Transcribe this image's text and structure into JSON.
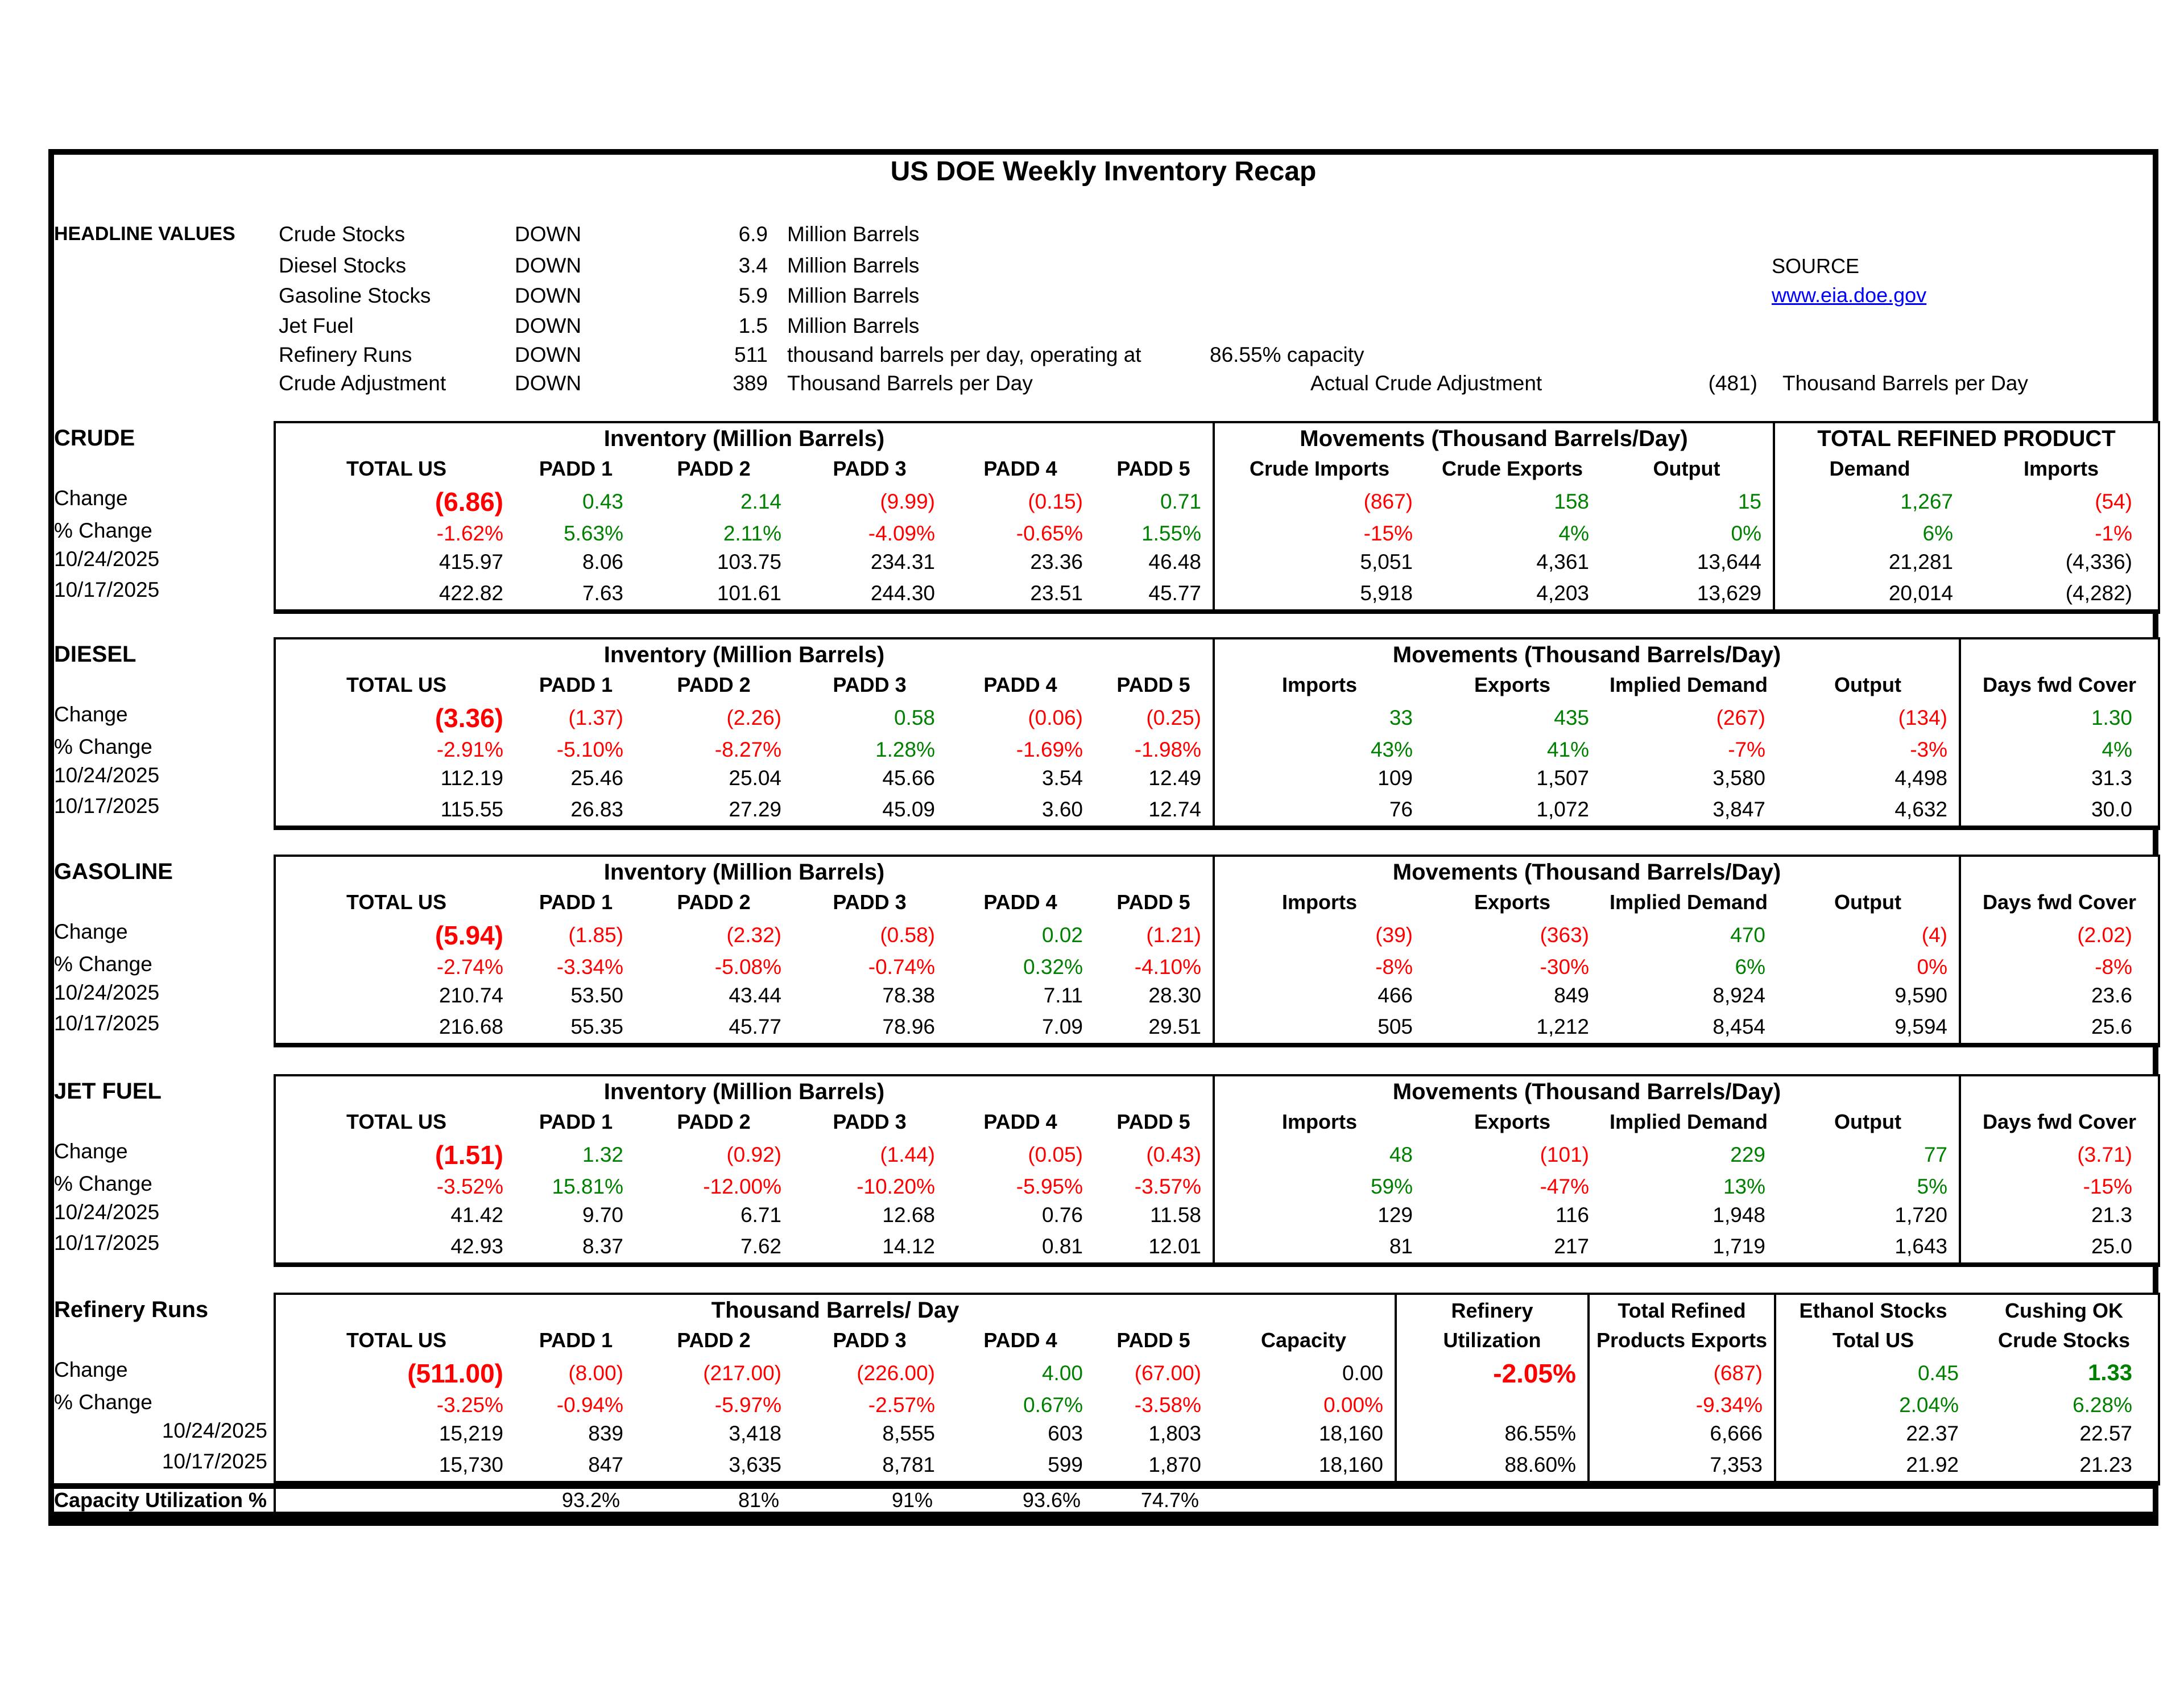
{
  "title": "US DOE Weekly Inventory Recap",
  "colors": {
    "negative": "#ff0000",
    "positive": "#008000",
    "link": "#0000ff",
    "border": "#000000"
  },
  "headline": {
    "label": "HEADLINE VALUES",
    "rows": [
      {
        "item": "Crude Stocks",
        "dir": "DOWN",
        "value": "6.9",
        "unit": "Million Barrels"
      },
      {
        "item": "Diesel Stocks",
        "dir": "DOWN",
        "value": "3.4",
        "unit": "Million Barrels"
      },
      {
        "item": "Gasoline Stocks",
        "dir": "DOWN",
        "value": "5.9",
        "unit": "Million Barrels"
      },
      {
        "item": "Jet Fuel",
        "dir": "DOWN",
        "value": "1.5",
        "unit": "Million Barrels"
      },
      {
        "item": "Refinery Runs",
        "dir": "DOWN",
        "value": "511",
        "unit": "thousand barrels per day, operating at",
        "capacity": "86.55% capacity"
      },
      {
        "item": "Crude Adjustment",
        "dir": "DOWN",
        "value": "389",
        "unit": "Thousand Barrels per Day",
        "actual_label": "Actual Crude Adjustment",
        "actual_value": "(481)",
        "actual_unit": "Thousand Barrels per Day"
      }
    ],
    "source_label": "SOURCE",
    "source_link": "www.eia.doe.gov"
  },
  "row_labels": [
    "Change",
    "% Change",
    "10/24/2025",
    "10/17/2025"
  ],
  "sections": {
    "crude": {
      "name": "CRUDE",
      "groups": [
        {
          "label": "Inventory (Million Barrels)",
          "span": [
            0,
            6
          ]
        },
        {
          "label": "Movements (Thousand Barrels/Day)",
          "span": [
            6,
            9
          ]
        },
        {
          "label": "TOTAL REFINED PRODUCT",
          "span": [
            9,
            11
          ]
        }
      ],
      "columns": [
        "TOTAL US",
        "PADD 1",
        "PADD 2",
        "PADD 3",
        "PADD 4",
        "PADD 5",
        "Crude Imports",
        "Crude Exports",
        "Output",
        "Demand",
        "Imports"
      ],
      "rows": [
        [
          [
            "(6.86)",
            "r",
            "big"
          ],
          [
            "0.43",
            "g"
          ],
          [
            "2.14",
            "g"
          ],
          [
            "(9.99)",
            "r"
          ],
          [
            "(0.15)",
            "r"
          ],
          [
            "0.71",
            "g"
          ],
          [
            "(867)",
            "r"
          ],
          [
            "158",
            "g"
          ],
          [
            "15",
            "g"
          ],
          [
            "1,267",
            "g"
          ],
          [
            "(54)",
            "r"
          ]
        ],
        [
          [
            "-1.62%",
            "r"
          ],
          [
            "5.63%",
            "g"
          ],
          [
            "2.11%",
            "g"
          ],
          [
            "-4.09%",
            "r"
          ],
          [
            "-0.65%",
            "r"
          ],
          [
            "1.55%",
            "g"
          ],
          [
            "-15%",
            "r"
          ],
          [
            "4%",
            "g"
          ],
          [
            "0%",
            "g"
          ],
          [
            "6%",
            "g"
          ],
          [
            "-1%",
            "r"
          ]
        ],
        [
          [
            "415.97",
            "k"
          ],
          [
            "8.06",
            "k"
          ],
          [
            "103.75",
            "k"
          ],
          [
            "234.31",
            "k"
          ],
          [
            "23.36",
            "k"
          ],
          [
            "46.48",
            "k"
          ],
          [
            "5,051",
            "k"
          ],
          [
            "4,361",
            "k"
          ],
          [
            "13,644",
            "k"
          ],
          [
            "21,281",
            "k"
          ],
          [
            "(4,336)",
            "k"
          ]
        ],
        [
          [
            "422.82",
            "k"
          ],
          [
            "7.63",
            "k"
          ],
          [
            "101.61",
            "k"
          ],
          [
            "244.30",
            "k"
          ],
          [
            "23.51",
            "k"
          ],
          [
            "45.77",
            "k"
          ],
          [
            "5,918",
            "k"
          ],
          [
            "4,203",
            "k"
          ],
          [
            "13,629",
            "k"
          ],
          [
            "20,014",
            "k"
          ],
          [
            "(4,282)",
            "k"
          ]
        ]
      ]
    },
    "diesel": {
      "name": "DIESEL",
      "groups": [
        {
          "label": "Inventory (Million Barrels)",
          "span": [
            0,
            6
          ]
        },
        {
          "label": "Movements (Thousand Barrels/Day)",
          "span": [
            6,
            10
          ]
        },
        {
          "label": "",
          "span": [
            10,
            11
          ]
        }
      ],
      "columns": [
        "TOTAL US",
        "PADD 1",
        "PADD 2",
        "PADD 3",
        "PADD 4",
        "PADD 5",
        "Imports",
        "Exports",
        "Implied Demand",
        "Output",
        "Days fwd Cover"
      ],
      "rows": [
        [
          [
            "(3.36)",
            "r",
            "big"
          ],
          [
            "(1.37)",
            "r"
          ],
          [
            "(2.26)",
            "r"
          ],
          [
            "0.58",
            "g"
          ],
          [
            "(0.06)",
            "r"
          ],
          [
            "(0.25)",
            "r"
          ],
          [
            "33",
            "g"
          ],
          [
            "435",
            "g"
          ],
          [
            "(267)",
            "r"
          ],
          [
            "(134)",
            "r"
          ],
          [
            "1.30",
            "g"
          ]
        ],
        [
          [
            "-2.91%",
            "r"
          ],
          [
            "-5.10%",
            "r"
          ],
          [
            "-8.27%",
            "r"
          ],
          [
            "1.28%",
            "g"
          ],
          [
            "-1.69%",
            "r"
          ],
          [
            "-1.98%",
            "r"
          ],
          [
            "43%",
            "g"
          ],
          [
            "41%",
            "g"
          ],
          [
            "-7%",
            "r"
          ],
          [
            "-3%",
            "r"
          ],
          [
            "4%",
            "g"
          ]
        ],
        [
          [
            "112.19",
            "k"
          ],
          [
            "25.46",
            "k"
          ],
          [
            "25.04",
            "k"
          ],
          [
            "45.66",
            "k"
          ],
          [
            "3.54",
            "k"
          ],
          [
            "12.49",
            "k"
          ],
          [
            "109",
            "k"
          ],
          [
            "1,507",
            "k"
          ],
          [
            "3,580",
            "k"
          ],
          [
            "4,498",
            "k"
          ],
          [
            "31.3",
            "k"
          ]
        ],
        [
          [
            "115.55",
            "k"
          ],
          [
            "26.83",
            "k"
          ],
          [
            "27.29",
            "k"
          ],
          [
            "45.09",
            "k"
          ],
          [
            "3.60",
            "k"
          ],
          [
            "12.74",
            "k"
          ],
          [
            "76",
            "k"
          ],
          [
            "1,072",
            "k"
          ],
          [
            "3,847",
            "k"
          ],
          [
            "4,632",
            "k"
          ],
          [
            "30.0",
            "k"
          ]
        ]
      ]
    },
    "gasoline": {
      "name": "GASOLINE",
      "groups": [
        {
          "label": "Inventory (Million Barrels)",
          "span": [
            0,
            6
          ]
        },
        {
          "label": "Movements (Thousand Barrels/Day)",
          "span": [
            6,
            10
          ]
        },
        {
          "label": "",
          "span": [
            10,
            11
          ]
        }
      ],
      "columns": [
        "TOTAL US",
        "PADD 1",
        "PADD 2",
        "PADD 3",
        "PADD 4",
        "PADD 5",
        "Imports",
        "Exports",
        "Implied Demand",
        "Output",
        "Days fwd Cover"
      ],
      "rows": [
        [
          [
            "(5.94)",
            "r",
            "big"
          ],
          [
            "(1.85)",
            "r"
          ],
          [
            "(2.32)",
            "r"
          ],
          [
            "(0.58)",
            "r"
          ],
          [
            "0.02",
            "g"
          ],
          [
            "(1.21)",
            "r"
          ],
          [
            "(39)",
            "r"
          ],
          [
            "(363)",
            "r"
          ],
          [
            "470",
            "g"
          ],
          [
            "(4)",
            "r"
          ],
          [
            "(2.02)",
            "r"
          ]
        ],
        [
          [
            "-2.74%",
            "r"
          ],
          [
            "-3.34%",
            "r"
          ],
          [
            "-5.08%",
            "r"
          ],
          [
            "-0.74%",
            "r"
          ],
          [
            "0.32%",
            "g"
          ],
          [
            "-4.10%",
            "r"
          ],
          [
            "-8%",
            "r"
          ],
          [
            "-30%",
            "r"
          ],
          [
            "6%",
            "g"
          ],
          [
            "0%",
            "r"
          ],
          [
            "-8%",
            "r"
          ]
        ],
        [
          [
            "210.74",
            "k"
          ],
          [
            "53.50",
            "k"
          ],
          [
            "43.44",
            "k"
          ],
          [
            "78.38",
            "k"
          ],
          [
            "7.11",
            "k"
          ],
          [
            "28.30",
            "k"
          ],
          [
            "466",
            "k"
          ],
          [
            "849",
            "k"
          ],
          [
            "8,924",
            "k"
          ],
          [
            "9,590",
            "k"
          ],
          [
            "23.6",
            "k"
          ]
        ],
        [
          [
            "216.68",
            "k"
          ],
          [
            "55.35",
            "k"
          ],
          [
            "45.77",
            "k"
          ],
          [
            "78.96",
            "k"
          ],
          [
            "7.09",
            "k"
          ],
          [
            "29.51",
            "k"
          ],
          [
            "505",
            "k"
          ],
          [
            "1,212",
            "k"
          ],
          [
            "8,454",
            "k"
          ],
          [
            "9,594",
            "k"
          ],
          [
            "25.6",
            "k"
          ]
        ]
      ]
    },
    "jetfuel": {
      "name": "JET FUEL",
      "groups": [
        {
          "label": "Inventory (Million Barrels)",
          "span": [
            0,
            6
          ]
        },
        {
          "label": "Movements (Thousand Barrels/Day)",
          "span": [
            6,
            10
          ]
        },
        {
          "label": "",
          "span": [
            10,
            11
          ]
        }
      ],
      "columns": [
        "TOTAL US",
        "PADD 1",
        "PADD 2",
        "PADD 3",
        "PADD 4",
        "PADD 5",
        "Imports",
        "Exports",
        "Implied Demand",
        "Output",
        "Days fwd Cover"
      ],
      "rows": [
        [
          [
            "(1.51)",
            "r",
            "big"
          ],
          [
            "1.32",
            "g"
          ],
          [
            "(0.92)",
            "r"
          ],
          [
            "(1.44)",
            "r"
          ],
          [
            "(0.05)",
            "r"
          ],
          [
            "(0.43)",
            "r"
          ],
          [
            "48",
            "g"
          ],
          [
            "(101)",
            "r"
          ],
          [
            "229",
            "g"
          ],
          [
            "77",
            "g"
          ],
          [
            "(3.71)",
            "r"
          ]
        ],
        [
          [
            "-3.52%",
            "r"
          ],
          [
            "15.81%",
            "g"
          ],
          [
            "-12.00%",
            "r"
          ],
          [
            "-10.20%",
            "r"
          ],
          [
            "-5.95%",
            "r"
          ],
          [
            "-3.57%",
            "r"
          ],
          [
            "59%",
            "g"
          ],
          [
            "-47%",
            "r"
          ],
          [
            "13%",
            "g"
          ],
          [
            "5%",
            "g"
          ],
          [
            "-15%",
            "r"
          ]
        ],
        [
          [
            "41.42",
            "k"
          ],
          [
            "9.70",
            "k"
          ],
          [
            "6.71",
            "k"
          ],
          [
            "12.68",
            "k"
          ],
          [
            "0.76",
            "k"
          ],
          [
            "11.58",
            "k"
          ],
          [
            "129",
            "k"
          ],
          [
            "116",
            "k"
          ],
          [
            "1,948",
            "k"
          ],
          [
            "1,720",
            "k"
          ],
          [
            "21.3",
            "k"
          ]
        ],
        [
          [
            "42.93",
            "k"
          ],
          [
            "8.37",
            "k"
          ],
          [
            "7.62",
            "k"
          ],
          [
            "14.12",
            "k"
          ],
          [
            "0.81",
            "k"
          ],
          [
            "12.01",
            "k"
          ],
          [
            "81",
            "k"
          ],
          [
            "217",
            "k"
          ],
          [
            "1,719",
            "k"
          ],
          [
            "1,643",
            "k"
          ],
          [
            "25.0",
            "k"
          ]
        ]
      ]
    },
    "refinery": {
      "name": "Refinery Runs",
      "groups": [
        {
          "label": "Thousand Barrels/ Day",
          "span": [
            0,
            7
          ]
        },
        {
          "label": "Refinery",
          "span": [
            7,
            8
          ]
        },
        {
          "label": "Total Refined",
          "span": [
            8,
            9
          ]
        },
        {
          "label": "Ethanol Stocks",
          "span": [
            9,
            10
          ]
        },
        {
          "label": "Cushing OK",
          "span": [
            10,
            11
          ]
        }
      ],
      "columns": [
        "TOTAL US",
        "PADD 1",
        "PADD 2",
        "PADD 3",
        "PADD 4",
        "PADD 5",
        "Capacity",
        "Utilization",
        "Products Exports",
        "Total US",
        "Crude Stocks"
      ],
      "rows": [
        [
          [
            "(511.00)",
            "r",
            "big"
          ],
          [
            "(8.00)",
            "r"
          ],
          [
            "(217.00)",
            "r"
          ],
          [
            "(226.00)",
            "r"
          ],
          [
            "4.00",
            "g"
          ],
          [
            "(67.00)",
            "r"
          ],
          [
            "0.00",
            "k"
          ],
          [
            "-2.05%",
            "r",
            "big"
          ],
          [
            "(687)",
            "r"
          ],
          [
            "0.45",
            "g"
          ],
          [
            "1.33",
            "g",
            "bold"
          ]
        ],
        [
          [
            "-3.25%",
            "r"
          ],
          [
            "-0.94%",
            "r"
          ],
          [
            "-5.97%",
            "r"
          ],
          [
            "-2.57%",
            "r"
          ],
          [
            "0.67%",
            "g"
          ],
          [
            "-3.58%",
            "r"
          ],
          [
            "0.00%",
            "r"
          ],
          [
            "",
            "k"
          ],
          [
            "-9.34%",
            "r"
          ],
          [
            "2.04%",
            "g"
          ],
          [
            "6.28%",
            "g"
          ]
        ],
        [
          [
            "15,219",
            "k"
          ],
          [
            "839",
            "k"
          ],
          [
            "3,418",
            "k"
          ],
          [
            "8,555",
            "k"
          ],
          [
            "603",
            "k"
          ],
          [
            "1,803",
            "k"
          ],
          [
            "18,160",
            "k"
          ],
          [
            "86.55%",
            "k"
          ],
          [
            "6,666",
            "k"
          ],
          [
            "22.37",
            "k"
          ],
          [
            "22.57",
            "k"
          ]
        ],
        [
          [
            "15,730",
            "k"
          ],
          [
            "847",
            "k"
          ],
          [
            "3,635",
            "k"
          ],
          [
            "8,781",
            "k"
          ],
          [
            "599",
            "k"
          ],
          [
            "1,870",
            "k"
          ],
          [
            "18,160",
            "k"
          ],
          [
            "88.60%",
            "k"
          ],
          [
            "7,353",
            "k"
          ],
          [
            "21.92",
            "k"
          ],
          [
            "21.23",
            "k"
          ]
        ]
      ]
    }
  },
  "capacity_utilization": {
    "label": "Capacity Utilization %",
    "values": [
      "93.2%",
      "81%",
      "91%",
      "93.6%",
      "74.7%"
    ]
  }
}
